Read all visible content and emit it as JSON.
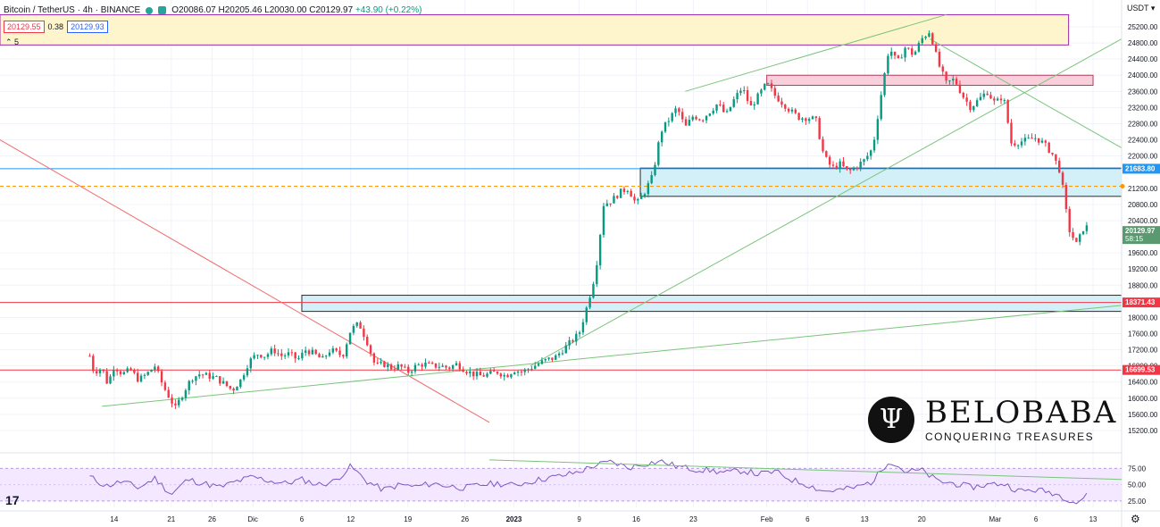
{
  "header": {
    "symbol": "Bitcoin / TetherUS · 4h · BINANCE",
    "ohlc": "O20086.07 H20205.46 L20030.00 C20129.97",
    "change": "+43.90 (+0.22%)",
    "bid": "20129.55",
    "spread": "0.38",
    "ask": "20129.93",
    "indicator_count": "5"
  },
  "axis_unit": "USDT",
  "price_ticks": [
    "25200.00",
    "24800.00",
    "24400.00",
    "24000.00",
    "23600.00",
    "23200.00",
    "22800.00",
    "22400.00",
    "22000.00",
    "21200.00",
    "20800.00",
    "20400.00",
    "19600.00",
    "19200.00",
    "18800.00",
    "18000.00",
    "17600.00",
    "17200.00",
    "16800.00",
    "16400.00",
    "16000.00",
    "15600.00",
    "15200.00"
  ],
  "price_labels": [
    {
      "text": "21683.80",
      "value": 21683.8,
      "color": "#2196f3"
    },
    {
      "text": "20129.97",
      "sub": "58:15",
      "value": 20129.97,
      "color": "#5b9a70"
    },
    {
      "text": "18371.43",
      "value": 18371.43,
      "color": "#f23645"
    },
    {
      "text": "16699.53",
      "value": 16699.53,
      "color": "#f23645"
    }
  ],
  "rsi_ticks": [
    "75.00",
    "50.00",
    "25.00"
  ],
  "time_labels": [
    {
      "text": "14",
      "t": 14
    },
    {
      "text": "21",
      "t": 21
    },
    {
      "text": "26",
      "t": 26
    },
    {
      "text": "Dic",
      "t": 31
    },
    {
      "text": "6",
      "t": 37
    },
    {
      "text": "12",
      "t": 43
    },
    {
      "text": "19",
      "t": 50
    },
    {
      "text": "26",
      "t": 57
    },
    {
      "text": "2023",
      "t": 63
    },
    {
      "text": "9",
      "t": 71
    },
    {
      "text": "16",
      "t": 78
    },
    {
      "text": "23",
      "t": 85
    },
    {
      "text": "Feb",
      "t": 94
    },
    {
      "text": "6",
      "t": 99
    },
    {
      "text": "13",
      "t": 106
    },
    {
      "text": "20",
      "t": 113
    },
    {
      "text": "Mar",
      "t": 122
    },
    {
      "text": "6",
      "t": 127
    },
    {
      "text": "13",
      "t": 134
    }
  ],
  "logo": {
    "name": "BELOBABA",
    "tagline": "CONQUERING TREASURES",
    "glyph": "Ψ"
  },
  "tv_mark": "17",
  "settings_icon": "⚙",
  "colors": {
    "up": "#089981",
    "down": "#f23645",
    "rsi": "#7e57c2"
  },
  "chart_data": {
    "type": "candlestick",
    "title": "Bitcoin / TetherUS · 4h · BINANCE",
    "ylabel": "USDT",
    "ylim": [
      14900,
      25500
    ],
    "x_unit": "days from 2022-11-01",
    "candle_interval": "4h",
    "close_path": [
      [
        11.0,
        17050
      ],
      [
        11.5,
        16650
      ],
      [
        12.5,
        16750
      ],
      [
        13.2,
        16350
      ],
      [
        14.0,
        16800
      ],
      [
        15.0,
        16600
      ],
      [
        16.0,
        16700
      ],
      [
        17.0,
        16450
      ],
      [
        18.0,
        16600
      ],
      [
        19.0,
        16800
      ],
      [
        20.0,
        16300
      ],
      [
        21.5,
        15750
      ],
      [
        22.5,
        16150
      ],
      [
        23.5,
        16500
      ],
      [
        24.5,
        16600
      ],
      [
        25.5,
        16550
      ],
      [
        26.5,
        16500
      ],
      [
        27.5,
        16350
      ],
      [
        28.5,
        16200
      ],
      [
        29.5,
        16450
      ],
      [
        30.5,
        16900
      ],
      [
        31.5,
        17100
      ],
      [
        32.5,
        17050
      ],
      [
        33.5,
        17200
      ],
      [
        34.5,
        17050
      ],
      [
        35.5,
        17100
      ],
      [
        36.5,
        16950
      ],
      [
        37.5,
        17200
      ],
      [
        38.5,
        17100
      ],
      [
        39.5,
        16950
      ],
      [
        40.5,
        17200
      ],
      [
        41.5,
        17100
      ],
      [
        42.0,
        17050
      ],
      [
        43.0,
        17700
      ],
      [
        44.0,
        17850
      ],
      [
        45.0,
        17400
      ],
      [
        46.0,
        16800
      ],
      [
        47.0,
        16850
      ],
      [
        48.0,
        16750
      ],
      [
        49.0,
        16800
      ],
      [
        50.0,
        16650
      ],
      [
        51.0,
        16800
      ],
      [
        52.0,
        16850
      ],
      [
        53.0,
        16800
      ],
      [
        54.0,
        16800
      ],
      [
        55.0,
        16750
      ],
      [
        56.0,
        16850
      ],
      [
        57.0,
        16700
      ],
      [
        58.0,
        16600
      ],
      [
        59.0,
        16550
      ],
      [
        60.0,
        16600
      ],
      [
        61.0,
        16650
      ],
      [
        62.0,
        16550
      ],
      [
        63.0,
        16700
      ],
      [
        64.0,
        16650
      ],
      [
        65.0,
        16750
      ],
      [
        66.0,
        16850
      ],
      [
        67.0,
        16950
      ],
      [
        68.0,
        17000
      ],
      [
        69.0,
        17200
      ],
      [
        70.0,
        17400
      ],
      [
        71.0,
        17600
      ],
      [
        72.0,
        18300
      ],
      [
        73.0,
        19100
      ],
      [
        74.0,
        20800
      ],
      [
        75.0,
        20900
      ],
      [
        76.0,
        21100
      ],
      [
        77.0,
        21200
      ],
      [
        78.0,
        20800
      ],
      [
        79.0,
        21100
      ],
      [
        80.0,
        21500
      ],
      [
        81.0,
        22600
      ],
      [
        82.0,
        22900
      ],
      [
        83.0,
        23200
      ],
      [
        84.0,
        22700
      ],
      [
        85.0,
        23000
      ],
      [
        86.0,
        22900
      ],
      [
        87.0,
        23100
      ],
      [
        88.0,
        23300
      ],
      [
        89.0,
        23000
      ],
      [
        90.0,
        23400
      ],
      [
        91.0,
        23700
      ],
      [
        92.0,
        23200
      ],
      [
        93.0,
        23500
      ],
      [
        94.0,
        23800
      ],
      [
        95.0,
        23500
      ],
      [
        96.0,
        23300
      ],
      [
        97.0,
        23100
      ],
      [
        98.0,
        22950
      ],
      [
        99.0,
        22950
      ],
      [
        100.0,
        22900
      ],
      [
        101.0,
        22000
      ],
      [
        102.0,
        21700
      ],
      [
        103.0,
        21800
      ],
      [
        104.0,
        21600
      ],
      [
        105.0,
        21750
      ],
      [
        106.0,
        21900
      ],
      [
        107.0,
        22200
      ],
      [
        108.0,
        23500
      ],
      [
        109.0,
        24700
      ],
      [
        110.0,
        24300
      ],
      [
        111.0,
        24700
      ],
      [
        112.0,
        24500
      ],
      [
        113.0,
        24900
      ],
      [
        114.0,
        25100
      ],
      [
        115.0,
        24300
      ],
      [
        116.0,
        23800
      ],
      [
        117.0,
        23900
      ],
      [
        118.0,
        23500
      ],
      [
        119.0,
        23200
      ],
      [
        120.0,
        23400
      ],
      [
        121.0,
        23600
      ],
      [
        122.0,
        23300
      ],
      [
        123.0,
        23500
      ],
      [
        124.0,
        22300
      ],
      [
        125.0,
        22350
      ],
      [
        126.0,
        22400
      ],
      [
        127.0,
        22450
      ],
      [
        128.0,
        22300
      ],
      [
        129.0,
        22050
      ],
      [
        130.0,
        21600
      ],
      [
        131.0,
        20200
      ],
      [
        132.0,
        19800
      ],
      [
        133.0,
        20300
      ],
      [
        133.6,
        20130
      ]
    ],
    "rsi": {
      "levels": [
        75,
        50,
        25
      ],
      "ylim": [
        18,
        92
      ],
      "path": [
        [
          11,
          62
        ],
        [
          13,
          48
        ],
        [
          15,
          55
        ],
        [
          17,
          45
        ],
        [
          19,
          60
        ],
        [
          21,
          35
        ],
        [
          23,
          58
        ],
        [
          25,
          52
        ],
        [
          27,
          46
        ],
        [
          29,
          55
        ],
        [
          31,
          62
        ],
        [
          33,
          56
        ],
        [
          35,
          52
        ],
        [
          37,
          58
        ],
        [
          39,
          50
        ],
        [
          41,
          55
        ],
        [
          43,
          78
        ],
        [
          45,
          55
        ],
        [
          47,
          42
        ],
        [
          49,
          50
        ],
        [
          51,
          47
        ],
        [
          53,
          52
        ],
        [
          55,
          48
        ],
        [
          57,
          45
        ],
        [
          59,
          50
        ],
        [
          61,
          52
        ],
        [
          63,
          49
        ],
        [
          65,
          55
        ],
        [
          67,
          60
        ],
        [
          69,
          64
        ],
        [
          71,
          70
        ],
        [
          73,
          80
        ],
        [
          75,
          85
        ],
        [
          77,
          76
        ],
        [
          79,
          82
        ],
        [
          81,
          86
        ],
        [
          83,
          78
        ],
        [
          85,
          74
        ],
        [
          87,
          72
        ],
        [
          89,
          68
        ],
        [
          91,
          72
        ],
        [
          93,
          66
        ],
        [
          95,
          70
        ],
        [
          97,
          58
        ],
        [
          99,
          50
        ],
        [
          101,
          40
        ],
        [
          103,
          42
        ],
        [
          105,
          46
        ],
        [
          107,
          55
        ],
        [
          109,
          88
        ],
        [
          111,
          70
        ],
        [
          113,
          72
        ],
        [
          115,
          55
        ],
        [
          117,
          52
        ],
        [
          119,
          46
        ],
        [
          121,
          50
        ],
        [
          123,
          52
        ],
        [
          125,
          40
        ],
        [
          127,
          42
        ],
        [
          129,
          38
        ],
        [
          131,
          28
        ],
        [
          132,
          22
        ],
        [
          133,
          32
        ],
        [
          133.6,
          34
        ]
      ]
    }
  }
}
